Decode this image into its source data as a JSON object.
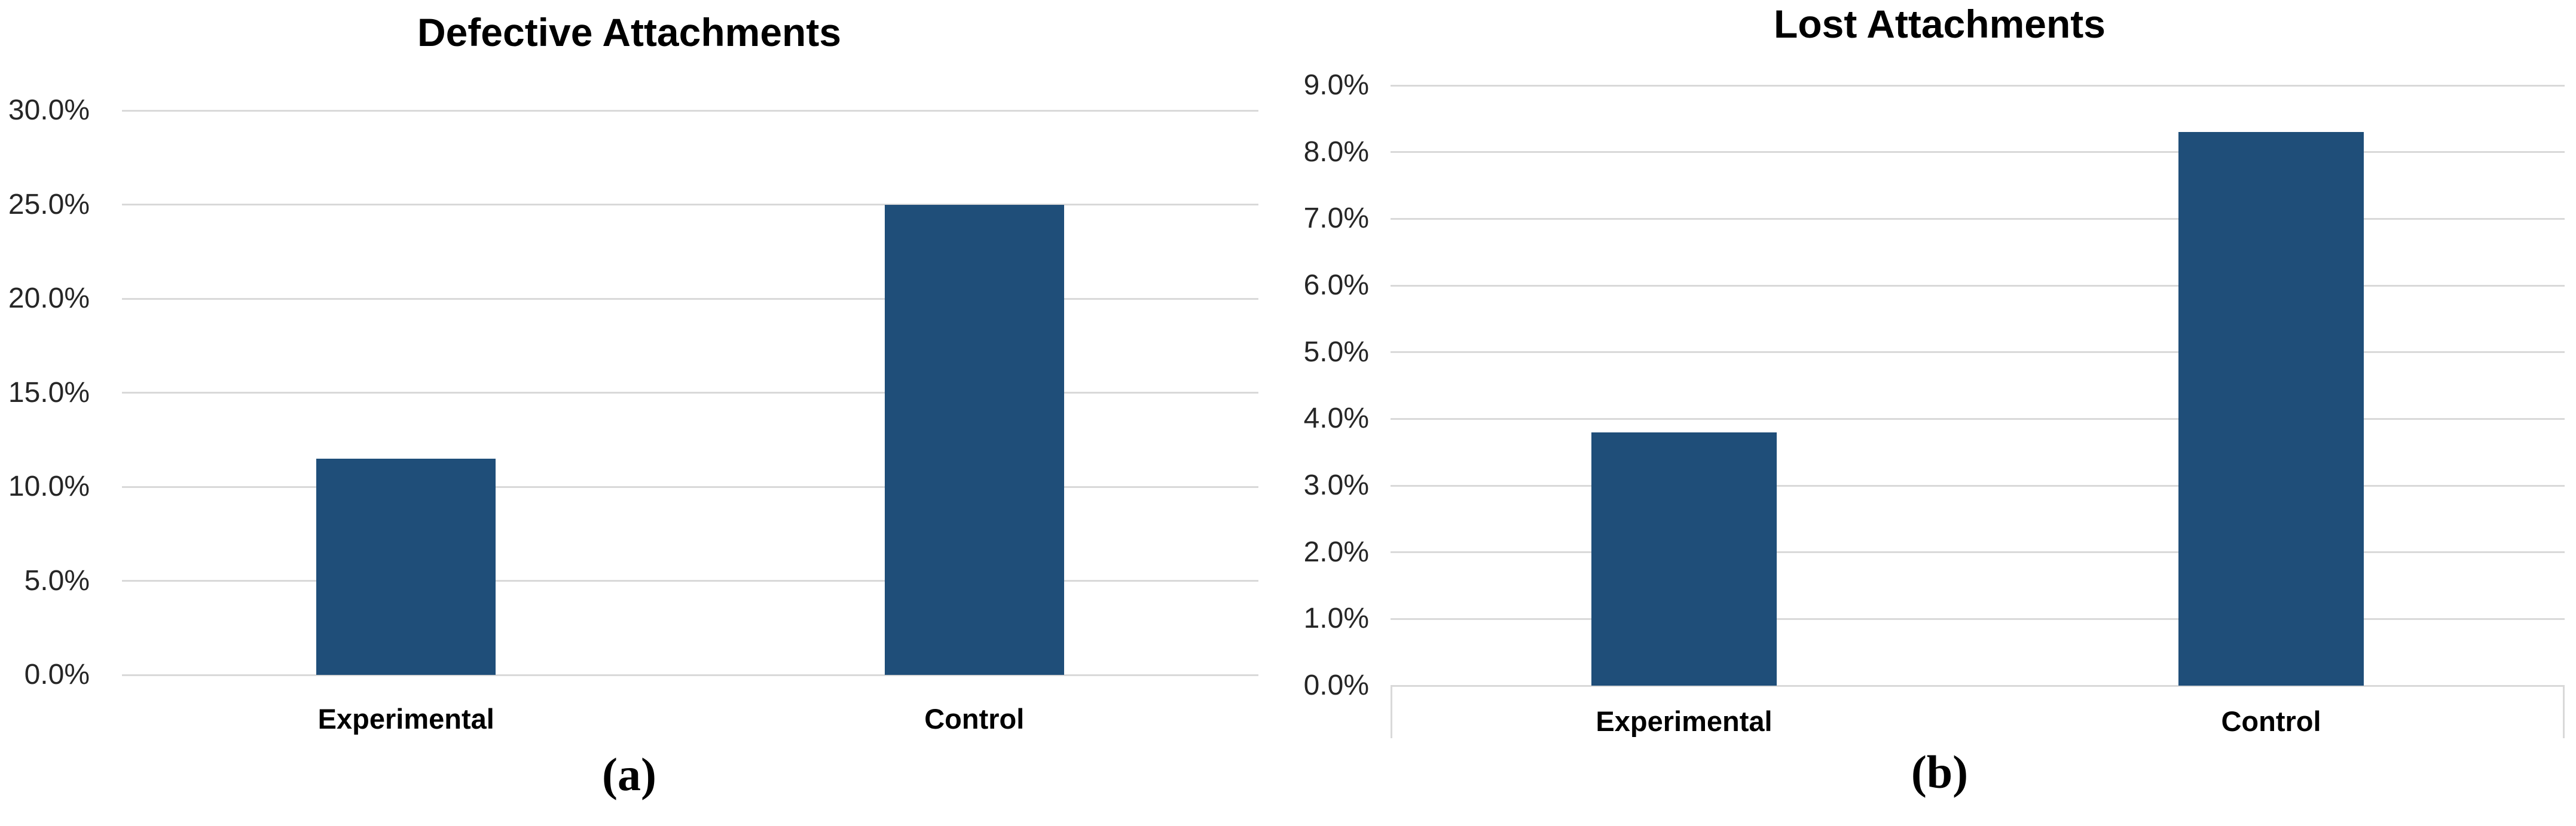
{
  "style": {
    "background": "#ffffff",
    "bar_color": "#1F4E79",
    "gridline_color": "#D9D9D9",
    "tick_text_color": "#262626",
    "title_text_color": "#000000"
  },
  "chart_data": [
    {
      "type": "bar",
      "title": "Defective Attachments",
      "panel_label": "(a)",
      "categories": [
        "Experimental",
        "Control"
      ],
      "values": [
        11.5,
        25.0
      ],
      "unit": "%",
      "ylim": [
        0,
        30
      ],
      "ytick_step": 5,
      "ytick_labels": [
        "0.0%",
        "5.0%",
        "10.0%",
        "15.0%",
        "20.0%",
        "25.0%",
        "30.0%"
      ],
      "xlabel": "",
      "ylabel": "",
      "grid": true,
      "legend": false,
      "bar_color": "#1F4E79"
    },
    {
      "type": "bar",
      "title": "Lost Attachments",
      "panel_label": "(b)",
      "categories": [
        "Experimental",
        "Control"
      ],
      "values": [
        3.8,
        8.3
      ],
      "unit": "%",
      "ylim": [
        0,
        9
      ],
      "ytick_step": 1,
      "ytick_labels": [
        "0.0%",
        "1.0%",
        "2.0%",
        "3.0%",
        "4.0%",
        "5.0%",
        "6.0%",
        "7.0%",
        "8.0%",
        "9.0%"
      ],
      "xlabel": "",
      "ylabel": "",
      "grid": true,
      "legend": false,
      "bar_color": "#1F4E79"
    }
  ]
}
